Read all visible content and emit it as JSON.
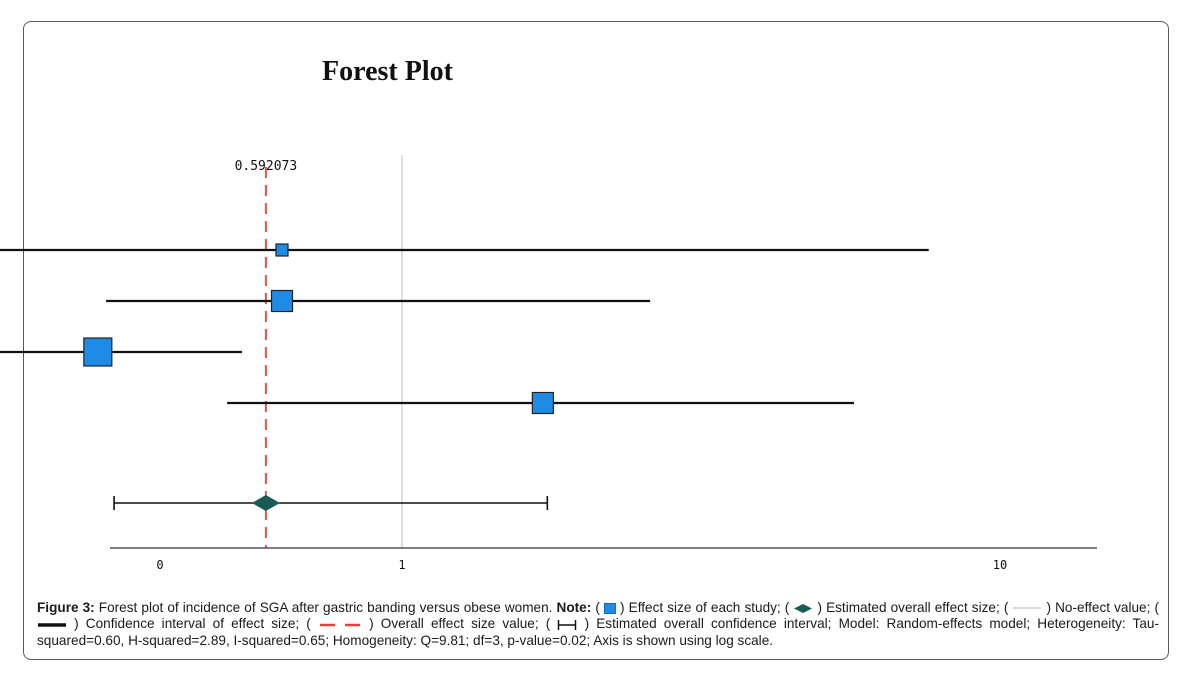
{
  "chart_data": {
    "type": "forest",
    "title": "Forest Plot",
    "x_scale": "log",
    "xlim": [
      0.1,
      10
    ],
    "x_ticks": [
      "0",
      "1",
      "10"
    ],
    "no_effect_value": 1,
    "overall_effect_label": "0.592073",
    "overall": {
      "estimate": 0.592073,
      "ci_low": 0.33,
      "ci_high": 1.75
    },
    "studies": [
      {
        "estimate": 0.63,
        "ci_low": 0.17,
        "ci_high": 7.6,
        "weight": 1
      },
      {
        "estimate": 0.63,
        "ci_low": 0.32,
        "ci_high": 2.6,
        "weight": 2
      },
      {
        "estimate": 0.31,
        "ci_low": 0.21,
        "ci_high": 0.54,
        "weight": 3
      },
      {
        "estimate": 1.72,
        "ci_low": 0.51,
        "ci_high": 5.7,
        "weight": 2
      }
    ],
    "colors": {
      "effect_box": "#1e8ce6",
      "overall_diamond": "#1a5a55",
      "no_effect_line": "#c8c8c8",
      "overall_line": "#d9534f",
      "ci_line": "#111111"
    }
  },
  "caption": {
    "figure_label": "Figure 3:",
    "text_1": " Forest plot of incidence of SGA after gastric banding versus obese women. ",
    "note_label": "Note:",
    "item_open": " ( ",
    "effect_size_text": " ) Effect size of each study; ( ",
    "overall_est_text": " ) Estimated overall effect size; ( ",
    "no_effect_text": " ) No-effect value; ( ",
    "ci_text": " ) Confidence interval of effect size; ( ",
    "overall_value_text": " ) Overall effect size value; ( ",
    "overall_ci_text": " ) Estimated overall confidence interval; Model: Random-effects model; Heterogeneity: Tau-squared=0.60, H-squared=2.89, I-squared=0.65; Homogeneity: Q=9.81; df=3, p-value=0.02; Axis is shown using log scale."
  }
}
